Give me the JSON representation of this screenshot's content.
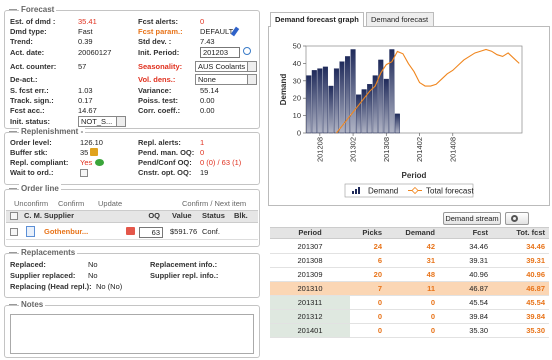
{
  "forecast": {
    "title": "Forecast",
    "left": [
      {
        "label": "Est. of dmd :",
        "value": "35.41"
      },
      {
        "label": "Dmd type:",
        "value": "Fast"
      },
      {
        "label": "Trend:",
        "value": "0.39"
      },
      {
        "label": "Act. date:",
        "value": "20060127"
      },
      {
        "label": "Act. counter:",
        "value": "57"
      },
      {
        "label": "De-act.:"
      },
      {
        "label": "S. fcst err.:",
        "value": "1.03"
      },
      {
        "label": "Track. sign.:",
        "value": "0.17"
      },
      {
        "label": "Fcst acc.:",
        "value": "14.67"
      },
      {
        "label": "Init. status:",
        "value": "NOT_S..."
      }
    ],
    "right": [
      {
        "label": "Fcst alerts:",
        "value": "0"
      },
      {
        "label": "Fcst param.:",
        "value": "DEFAULT"
      },
      {
        "label": "Std dev. :",
        "value": "7.43"
      },
      {
        "label": "Init. Period:",
        "value": "201203"
      },
      {
        "label": "Seasonality:",
        "value": "AUS Coolants"
      },
      {
        "label": "Vol. dens.:",
        "value": "None"
      },
      {
        "label": "Variance:",
        "value": "55.14"
      },
      {
        "label": "Poiss. test:",
        "value": "0.00"
      },
      {
        "label": "Corr. coeff.:",
        "value": "0.00"
      }
    ]
  },
  "replenishment": {
    "title": "Replenishment -",
    "left": [
      {
        "label": "Order level:",
        "value": "126.10"
      },
      {
        "label": "Buffer stk:",
        "value": "35"
      },
      {
        "label": "Repl. compliant:",
        "value": "Yes"
      },
      {
        "label": "Wait to ord.:"
      }
    ],
    "right": [
      {
        "label": "Repl. alerts:",
        "value": "1"
      },
      {
        "label": "Pend. man. OQ:",
        "value": "0"
      },
      {
        "label": "Pend/Conf OQ:",
        "value": "0 (0) / 63 (1)"
      },
      {
        "label": "Cnstr. opt. OQ:",
        "value": "19"
      }
    ]
  },
  "order_line": {
    "title": "Order line",
    "actions": [
      "Unconfirm",
      "Confirm",
      "Update"
    ],
    "next": "Confirm / Next item",
    "columns": [
      "C. M.",
      "Supplier",
      "OQ",
      "Value",
      "Status",
      "Blk."
    ],
    "row": {
      "supplier": "Gothenbur...",
      "oq": "63",
      "value": "$591.76",
      "status": "Conf."
    }
  },
  "replacements": {
    "title": "Replacements",
    "rows": [
      {
        "label": "Replaced:",
        "value": "No",
        "info": "Replacement info.:"
      },
      {
        "label": "Supplier replaced:",
        "value": "No",
        "info": "Supplier repl. info.:"
      },
      {
        "label": "Replacing (Head repl.):",
        "value": "No (No)"
      }
    ]
  },
  "notes": {
    "title": "Notes"
  },
  "tabs": [
    "Demand forecast graph",
    "Demand forecast"
  ],
  "chart_data": {
    "type": "bar",
    "y_label": "Demand",
    "x_label": "Period",
    "categories": [
      null,
      null,
      "201208",
      null,
      null,
      null,
      null,
      null,
      "201302",
      null,
      null,
      null,
      null,
      null,
      "201308",
      null,
      null,
      null,
      null,
      null,
      "201402",
      null,
      null,
      null,
      null,
      null,
      "201408",
      null,
      null,
      null,
      null,
      null,
      null,
      null,
      null,
      null,
      null,
      null,
      null
    ],
    "series": [
      {
        "name": "Demand",
        "type": "bar",
        "color": "#1f2a5a",
        "values": [
          33,
          36,
          37,
          38,
          27,
          37,
          41,
          44,
          48,
          22,
          25,
          28,
          33,
          42,
          31,
          48,
          11,
          null,
          null,
          null,
          null,
          null,
          null,
          null,
          null,
          null,
          null,
          null,
          null,
          null,
          null,
          null,
          null,
          null,
          null,
          null,
          null,
          null,
          null
        ]
      },
      {
        "name": "Total forecast",
        "type": "line",
        "color": "#f0861e",
        "values": [
          null,
          null,
          null,
          null,
          null,
          0,
          4,
          8,
          12,
          16,
          20,
          24,
          27,
          34.46,
          39.31,
          40.96,
          46.87,
          45.54,
          39.84,
          35.3,
          29,
          27,
          27,
          28,
          31,
          34,
          36,
          39,
          42,
          44,
          46,
          47,
          48,
          47,
          45,
          44,
          46,
          43,
          40
        ]
      }
    ],
    "ylim": [
      0,
      50
    ],
    "yticks": [
      0,
      10,
      20,
      30,
      40,
      50
    ]
  },
  "table": {
    "button": "Demand stream",
    "columns": [
      "Period",
      "Picks",
      "Demand",
      "Fcst",
      "Tot. fcst"
    ],
    "selected_row": 3,
    "rows": [
      [
        "201307",
        "24",
        "42",
        "34.46",
        "34.46"
      ],
      [
        "201308",
        "6",
        "31",
        "39.31",
        "39.31"
      ],
      [
        "201309",
        "20",
        "48",
        "40.96",
        "40.96"
      ],
      [
        "201310",
        "7",
        "11",
        "46.87",
        "46.87"
      ],
      [
        "201311",
        "0",
        "0",
        "45.54",
        "45.54"
      ],
      [
        "201312",
        "0",
        "0",
        "39.84",
        "39.84"
      ],
      [
        "201401",
        "0",
        "0",
        "35.30",
        "35.30"
      ]
    ]
  }
}
